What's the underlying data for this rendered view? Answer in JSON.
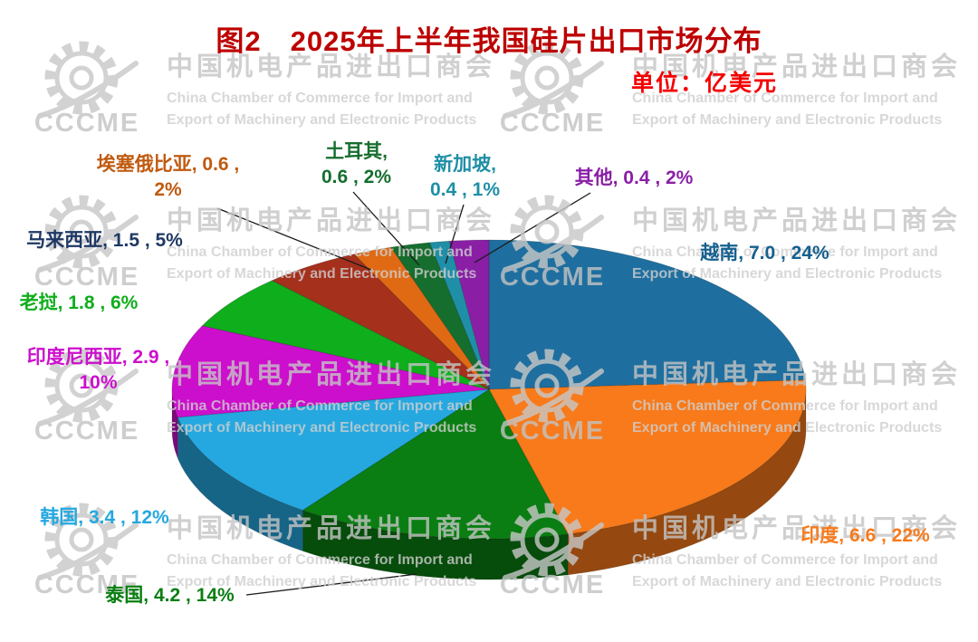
{
  "figure": {
    "title": "图2　2025年上半年我国硅片出口市场分布",
    "unit_label": "单位：亿美元"
  },
  "watermark": {
    "logo_text": "CCCME",
    "org_cn": "中国机电产品进出口商会",
    "org_en_line1": "China Chamber of Commerce for Import and",
    "org_en_line2": "Export of Machinery and Electronic Products"
  },
  "chart_data": {
    "type": "pie",
    "style": "3d",
    "title": "2025年上半年我国硅片出口市场分布",
    "unit": "亿美元",
    "direction": "clockwise",
    "start_angle_deg": 0,
    "legend": "none",
    "slices": [
      {
        "name": "越南",
        "value": 7.0,
        "pct": 24,
        "color": "#1E6F9F",
        "label_color": "#15608F",
        "label_lines": [
          "越南, 7.0 , 24%"
        ]
      },
      {
        "name": "印度",
        "value": 6.6,
        "pct": 22,
        "color": "#F87A1A",
        "label_color": "#F87A1A",
        "label_lines": [
          "印度, 6.6 , 22%"
        ]
      },
      {
        "name": "泰国",
        "value": 4.2,
        "pct": 14,
        "color": "#0A7E12",
        "label_color": "#0A7E12",
        "label_lines": [
          "泰国, 4.2 , 14%"
        ]
      },
      {
        "name": "韩国",
        "value": 3.4,
        "pct": 12,
        "color": "#25A8E0",
        "label_color": "#25A8E0",
        "label_lines": [
          "韩国, 3.4 , 12%"
        ]
      },
      {
        "name": "印度尼西亚",
        "value": 2.9,
        "pct": 10,
        "color": "#CC0FCC",
        "label_color": "#CC0FCC",
        "label_lines": [
          "印度尼西亚, 2.9 ,",
          "10%"
        ]
      },
      {
        "name": "老挝",
        "value": 1.8,
        "pct": 6,
        "color": "#0FAE1C",
        "label_color": "#0FAE1C",
        "label_lines": [
          "老挝, 1.8 , 6%"
        ]
      },
      {
        "name": "马来西亚",
        "value": 1.5,
        "pct": 5,
        "color": "#A5301C",
        "label_color": "#1F3864",
        "label_lines": [
          "马来西亚, 1.5 , 5%"
        ]
      },
      {
        "name": "埃塞俄比亚",
        "value": 0.6,
        "pct": 2,
        "color": "#E06A14",
        "label_color": "#C05A10",
        "label_lines": [
          "埃塞俄比亚, 0.6 ,",
          "2%"
        ]
      },
      {
        "name": "土耳其",
        "value": 0.6,
        "pct": 2,
        "color": "#166E2E",
        "label_color": "#166E2E",
        "label_lines": [
          "土耳其,",
          "0.6 , 2%"
        ]
      },
      {
        "name": "新加坡",
        "value": 0.4,
        "pct": 1,
        "color": "#1E8FA6",
        "label_color": "#1E8FA6",
        "label_lines": [
          "新加坡,",
          "0.4 , 1%"
        ]
      },
      {
        "name": "其他",
        "value": 0.4,
        "pct": 2,
        "color": "#8A1FA6",
        "label_color": "#8A1FA6",
        "label_lines": [
          "其他, 0.4 , 2%"
        ]
      }
    ]
  }
}
